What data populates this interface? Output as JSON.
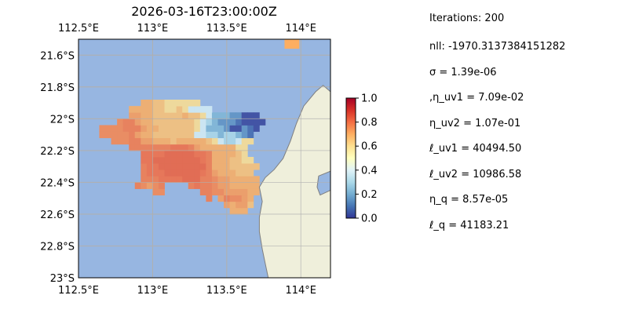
{
  "chart_data": {
    "type": "heatmap",
    "title": "2026-03-16T23:00:00Z",
    "xlabel": "",
    "ylabel": "",
    "xlim": [
      112.5,
      114.2
    ],
    "ylim": [
      -23.0,
      -21.5
    ],
    "x_ticks": [
      {
        "value": 112.5,
        "label": "112.5°E"
      },
      {
        "value": 113.0,
        "label": "113°E"
      },
      {
        "value": 113.5,
        "label": "113.5°E"
      },
      {
        "value": 114.0,
        "label": "114°E"
      }
    ],
    "y_ticks": [
      {
        "value": -21.6,
        "label": "21.6°S"
      },
      {
        "value": -21.8,
        "label": "21.8°S"
      },
      {
        "value": -22.0,
        "label": "22°S"
      },
      {
        "value": -22.2,
        "label": "22.2°S"
      },
      {
        "value": -22.4,
        "label": "22.4°S"
      },
      {
        "value": -22.6,
        "label": "22.6°S"
      },
      {
        "value": -22.8,
        "label": "22.8°S"
      },
      {
        "value": -23.0,
        "label": "23°S"
      }
    ],
    "grid": true,
    "colorbar": {
      "min": 0.0,
      "max": 1.0,
      "ticks": [
        "0.0",
        "0.2",
        "0.4",
        "0.6",
        "0.8",
        "1.0"
      ],
      "tick_values": [
        0.0,
        0.2,
        0.4,
        0.6,
        0.8,
        1.0
      ],
      "colormap": [
        "#313695",
        "#4575b4",
        "#74add1",
        "#abd9e9",
        "#e0f3f8",
        "#ffffbf",
        "#fee090",
        "#fdae61",
        "#f46d43",
        "#d73027",
        "#a50026"
      ]
    },
    "colors": {
      "ocean": "#97b6e1",
      "land": "#efefdb",
      "coast": "#7f7f7f",
      "grid": "#b0b0b0"
    },
    "value_grid": {
      "lon0": 112.52,
      "lat0": -23.0,
      "dlon": 0.04,
      "dlat": 0.04,
      "rows": [
        "...........................................",
        "...........................................",
        "...........................................",
        "...........................................",
        "...........................................",
        "...........................................",
        "...........................................",
        "...........................................",
        "...........................................",
        "...........................................",
        ".........................888..............",
        "........................98997.............",
        ".....................B.9BAA98.............",
        "............AA......BBAA999988............",
        ".........BA9AB....BCBBA9988888......7......",
        "..........BBBCCCCDDDBBA9988888............",
        "..........BCCCDDDDDDCB9888777.............",
        "..........BCCDDDDDDDDB88877777............",
        "..........CCDDDDDDDDCB8887766.............",
        "..........CCCCDDDDDCCB888876..............",
        "........BBBBBBBCCCB988888866..............",
        ".....AAABB9988878888876544566.............",
        "...AAAAAB98877777775544344321..............",
        "...AAAABBB98877777765333200210.............",
        "......ABB9887777777654322210000............",
        "........9988777778776533322000.............",
        "........88887766765555.........",
        "..........8877666666..........."
      ]
    },
    "value_scale": {
      ".": null,
      "0": 0.02,
      "1": 0.08,
      "2": 0.15,
      "3": 0.22,
      "4": 0.3,
      "5": 0.38,
      "6": 0.6,
      "7": 0.66,
      "8": 0.7,
      "9": 0.73,
      "A": 0.76,
      "B": 0.78,
      "C": 0.8,
      "D": 0.82
    },
    "landmass": {
      "coast": [
        [
          114.2,
          -21.83
        ],
        [
          114.15,
          -21.79
        ],
        [
          114.1,
          -21.83
        ],
        [
          114.02,
          -21.92
        ],
        [
          113.97,
          -22.03
        ],
        [
          113.93,
          -22.14
        ],
        [
          113.88,
          -22.25
        ],
        [
          113.82,
          -22.32
        ],
        [
          113.76,
          -22.37
        ],
        [
          113.72,
          -22.43
        ],
        [
          113.74,
          -22.52
        ],
        [
          113.72,
          -22.62
        ],
        [
          113.72,
          -22.71
        ],
        [
          113.74,
          -22.82
        ],
        [
          113.76,
          -22.91
        ],
        [
          113.78,
          -23.0
        ],
        [
          114.2,
          -23.0
        ]
      ],
      "inlet": [
        [
          114.2,
          -22.45
        ],
        [
          114.13,
          -22.48
        ],
        [
          114.11,
          -22.43
        ],
        [
          114.12,
          -22.36
        ],
        [
          114.2,
          -22.33
        ]
      ]
    },
    "top_patch": {
      "lon": [
        113.89,
        113.99
      ],
      "lat": [
        -21.56,
        -21.5
      ],
      "value": 0.7
    }
  },
  "stats": [
    "Iterations: 200",
    "nll: -1970.3137384151282",
    "σ = 1.39e-06",
    ",η_uv1 = 7.09e-02",
    "η_uv2 = 1.07e-01",
    "ℓ_uv1 = 40494.50",
    "ℓ_uv2 = 10986.58",
    "η_q = 8.57e-05",
    "ℓ_q = 41183.21"
  ]
}
